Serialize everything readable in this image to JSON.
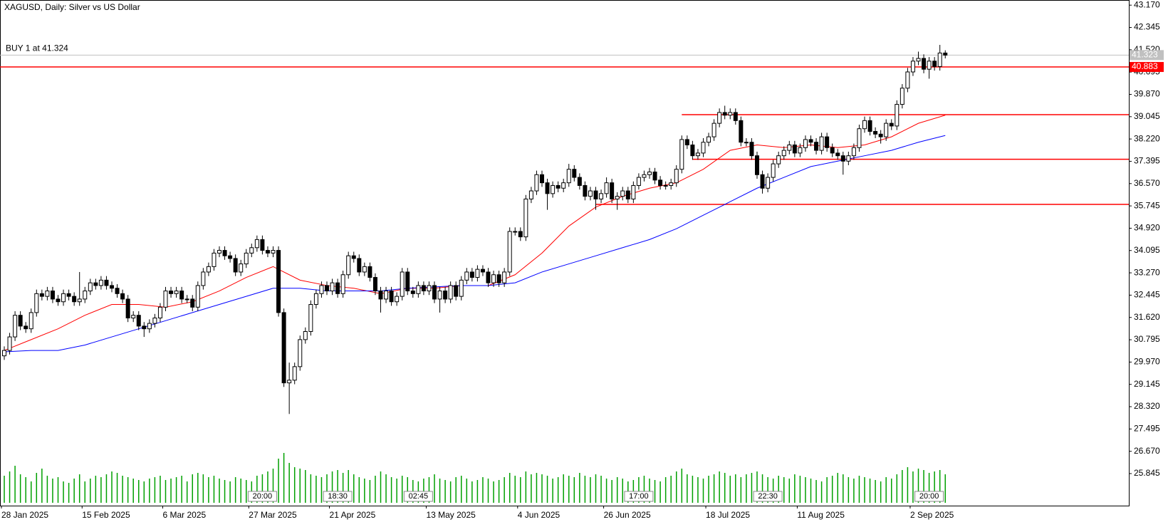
{
  "chart_data": {
    "type": "candlestick",
    "title": "XAGUSD, Daily:  Silver vs US Dollar",
    "annotation": "BUY 1 at 41.324",
    "ylim": [
      24.66,
      43.36
    ],
    "yticks": [
      {
        "value": 43.17,
        "label": "43.170"
      },
      42.345,
      {
        "value": 41.52,
        "label": "41.520"
      },
      40.695,
      {
        "value": 39.87,
        "label": "39.870"
      },
      39.045,
      {
        "value": 38.22,
        "label": "38.220"
      },
      37.395,
      {
        "value": 36.57,
        "label": "36.570"
      },
      35.745,
      {
        "value": 34.92,
        "label": "34.920"
      },
      34.095,
      {
        "value": 33.27,
        "label": "33.270"
      },
      32.445,
      {
        "value": 31.62,
        "label": "31.620"
      },
      30.795,
      {
        "value": 29.97,
        "label": "29.970"
      },
      29.145,
      {
        "value": 28.32,
        "label": "28.320"
      },
      27.495,
      {
        "value": 26.67,
        "label": "26.670"
      },
      25.845
    ],
    "xticks": [
      {
        "value": 0,
        "label": "28 Jan 2025"
      },
      {
        "value": 15,
        "label": "15 Feb 2025"
      },
      {
        "value": 30,
        "label": "6 Mar 2025"
      },
      {
        "value": 46,
        "label": "27 Mar 2025"
      },
      {
        "value": 61,
        "label": "21 Apr 2025"
      },
      {
        "value": 79,
        "label": "13 May 2025"
      },
      {
        "value": 96,
        "label": "4 Jun 2025"
      },
      {
        "value": 112,
        "label": "26 Jun 2025"
      },
      {
        "value": 131,
        "label": "18 Jul 2025"
      },
      {
        "value": 148,
        "label": "11 Aug 2025"
      },
      {
        "value": 169,
        "label": "2 Sep 2025"
      }
    ],
    "bid": 41.323,
    "bid_color": "#c0c0c0",
    "levels": [
      {
        "value": 40.883,
        "color": "#ff0000"
      },
      {
        "value": 39.12,
        "x0": 126,
        "color": "#ff0000"
      },
      {
        "value": 37.47,
        "x0": 128,
        "color": "#ff0000"
      },
      {
        "value": 35.8,
        "x0": 110,
        "color": "#ff0000"
      }
    ],
    "moving_averages": [
      {
        "color": "#ff0000",
        "x": [
          0,
          5,
          10,
          15,
          20,
          25,
          30,
          35,
          40,
          45,
          50,
          55,
          60,
          65,
          70,
          75,
          80,
          85,
          90,
          95,
          100,
          105,
          110,
          115,
          120,
          125,
          130,
          135,
          140,
          145,
          150,
          155,
          160,
          165,
          170,
          175
        ],
        "values": [
          30.4,
          30.8,
          31.2,
          31.7,
          32.1,
          32.1,
          32.0,
          32.2,
          32.6,
          33.1,
          33.5,
          33.0,
          32.8,
          32.7,
          32.5,
          32.7,
          32.7,
          32.8,
          32.8,
          33.2,
          34.0,
          35.0,
          35.7,
          36.1,
          36.4,
          36.6,
          37.1,
          37.8,
          38.0,
          37.9,
          38.0,
          37.9,
          38.0,
          38.3,
          38.8,
          39.1
        ]
      },
      {
        "color": "#0000ff",
        "x": [
          0,
          5,
          10,
          15,
          20,
          25,
          30,
          35,
          40,
          45,
          50,
          55,
          60,
          65,
          70,
          75,
          80,
          85,
          90,
          95,
          100,
          105,
          110,
          115,
          120,
          125,
          130,
          135,
          140,
          145,
          150,
          155,
          160,
          165,
          170,
          175
        ],
        "values": [
          30.35,
          30.4,
          30.4,
          30.6,
          30.9,
          31.2,
          31.5,
          31.8,
          32.1,
          32.4,
          32.7,
          32.7,
          32.6,
          32.6,
          32.6,
          32.7,
          32.75,
          32.8,
          32.8,
          32.9,
          33.3,
          33.6,
          33.9,
          34.2,
          34.5,
          34.9,
          35.4,
          35.9,
          36.4,
          36.8,
          37.2,
          37.4,
          37.6,
          37.8,
          38.1,
          38.35
        ]
      }
    ],
    "volume_color": "#00a000",
    "volume": [
      38,
      44,
      52,
      40,
      36,
      30,
      42,
      48,
      38,
      34,
      36,
      30,
      28,
      34,
      40,
      30,
      34,
      38,
      36,
      40,
      44,
      42,
      38,
      36,
      34,
      32,
      30,
      34,
      36,
      38,
      32,
      34,
      36,
      38,
      30,
      40,
      42,
      40,
      36,
      38,
      34,
      32,
      30,
      36,
      34,
      32,
      30,
      38,
      40,
      44,
      48,
      62,
      70,
      56,
      50,
      48,
      46,
      40,
      38,
      36,
      40,
      44,
      46,
      42,
      46,
      40,
      36,
      34,
      32,
      38,
      44,
      40,
      36,
      34,
      38,
      36,
      32,
      30,
      34,
      36,
      40,
      34,
      32,
      30,
      36,
      38,
      34,
      30,
      32,
      36,
      34,
      30,
      32,
      36,
      42,
      38,
      36,
      44,
      40,
      42,
      40,
      38,
      34,
      36,
      40,
      38,
      36,
      42,
      38,
      36,
      40,
      38,
      34,
      32,
      36,
      34,
      30,
      32,
      36,
      38,
      34,
      32,
      30,
      36,
      38,
      44,
      48,
      40,
      38,
      36,
      34,
      38,
      40,
      44,
      42,
      38,
      40,
      36,
      40,
      42,
      44,
      40,
      36,
      34,
      38,
      36,
      34,
      40,
      38,
      36,
      34,
      32,
      30,
      36,
      38,
      42,
      40,
      36,
      34,
      38,
      36,
      34,
      32,
      30,
      36,
      34,
      40,
      46,
      50,
      44,
      48,
      46,
      42,
      44,
      46,
      40
    ],
    "trade_labels": [
      "20:00",
      "18:30",
      "02:45",
      "17:00",
      "22:30",
      "20:00"
    ],
    "candles": [
      [
        30.2,
        30.55,
        30.05,
        30.4
      ],
      [
        30.4,
        31.05,
        30.25,
        30.9
      ],
      [
        30.9,
        31.85,
        30.75,
        31.7
      ],
      [
        31.7,
        31.85,
        31.15,
        31.3
      ],
      [
        31.3,
        31.45,
        31.05,
        31.2
      ],
      [
        31.2,
        31.95,
        31.05,
        31.8
      ],
      [
        31.8,
        32.65,
        31.65,
        32.5
      ],
      [
        32.5,
        32.65,
        32.25,
        32.4
      ],
      [
        32.4,
        32.75,
        32.25,
        32.6
      ],
      [
        32.6,
        32.75,
        32.15,
        32.3
      ],
      [
        32.3,
        32.45,
        32.05,
        32.2
      ],
      [
        32.2,
        32.65,
        32.05,
        32.5
      ],
      [
        32.5,
        32.65,
        32.25,
        32.4
      ],
      [
        32.4,
        32.55,
        32.05,
        32.2
      ],
      [
        32.2,
        33.3,
        32.05,
        32.3
      ],
      [
        32.3,
        32.75,
        32.15,
        32.6
      ],
      [
        32.6,
        33.05,
        32.45,
        32.9
      ],
      [
        32.9,
        33.05,
        32.65,
        32.8
      ],
      [
        32.8,
        33.15,
        32.65,
        33.0
      ],
      [
        33.0,
        33.15,
        32.65,
        32.8
      ],
      [
        32.8,
        32.95,
        32.55,
        32.7
      ],
      [
        32.7,
        32.85,
        32.35,
        32.5
      ],
      [
        32.5,
        32.65,
        32.15,
        32.3
      ],
      [
        32.3,
        32.45,
        31.45,
        31.6
      ],
      [
        31.6,
        31.85,
        31.45,
        31.7
      ],
      [
        31.7,
        31.85,
        31.15,
        31.3
      ],
      [
        31.3,
        31.45,
        30.9,
        31.2
      ],
      [
        31.2,
        31.55,
        31.05,
        31.4
      ],
      [
        31.4,
        31.75,
        31.25,
        31.6
      ],
      [
        31.6,
        32.15,
        31.45,
        32.0
      ],
      [
        32.0,
        32.75,
        31.85,
        32.6
      ],
      [
        32.6,
        32.75,
        32.35,
        32.5
      ],
      [
        32.5,
        32.75,
        32.35,
        32.6
      ],
      [
        32.6,
        32.75,
        32.15,
        32.3
      ],
      [
        32.3,
        32.45,
        32.15,
        32.3
      ],
      [
        32.3,
        32.45,
        31.85,
        32.0
      ],
      [
        32.0,
        32.95,
        31.85,
        32.8
      ],
      [
        32.8,
        33.45,
        32.65,
        33.3
      ],
      [
        33.3,
        33.65,
        33.15,
        33.5
      ],
      [
        33.5,
        34.15,
        33.35,
        34.0
      ],
      [
        34.0,
        34.25,
        33.85,
        34.1
      ],
      [
        34.1,
        34.25,
        33.75,
        33.9
      ],
      [
        33.9,
        34.05,
        33.65,
        33.8
      ],
      [
        33.8,
        33.95,
        33.15,
        33.3
      ],
      [
        33.3,
        33.75,
        33.15,
        33.6
      ],
      [
        33.6,
        34.15,
        33.45,
        34.0
      ],
      [
        34.0,
        34.35,
        33.85,
        34.2
      ],
      [
        34.2,
        34.65,
        34.05,
        34.5
      ],
      [
        34.5,
        34.65,
        33.95,
        34.1
      ],
      [
        34.1,
        34.25,
        33.85,
        34.0
      ],
      [
        34.0,
        34.25,
        33.85,
        34.1
      ],
      [
        34.1,
        34.25,
        31.65,
        31.8
      ],
      [
        31.8,
        31.95,
        29.05,
        29.2
      ],
      [
        29.2,
        29.95,
        28.05,
        29.3
      ],
      [
        29.3,
        29.95,
        29.15,
        29.8
      ],
      [
        29.8,
        30.95,
        29.65,
        30.8
      ],
      [
        30.8,
        31.25,
        30.65,
        31.1
      ],
      [
        31.1,
        32.25,
        30.95,
        32.1
      ],
      [
        32.1,
        32.65,
        31.95,
        32.5
      ],
      [
        32.5,
        32.95,
        32.35,
        32.8
      ],
      [
        32.8,
        32.95,
        32.45,
        32.6
      ],
      [
        32.6,
        33.05,
        32.45,
        32.9
      ],
      [
        32.9,
        33.05,
        32.35,
        32.5
      ],
      [
        32.5,
        33.35,
        32.35,
        33.2
      ],
      [
        33.2,
        34.05,
        33.05,
        33.9
      ],
      [
        33.9,
        34.05,
        33.65,
        33.8
      ],
      [
        33.8,
        33.95,
        33.15,
        33.3
      ],
      [
        33.3,
        33.65,
        33.15,
        33.5
      ],
      [
        33.5,
        33.65,
        32.95,
        33.1
      ],
      [
        33.1,
        33.25,
        32.45,
        32.6
      ],
      [
        32.6,
        32.75,
        31.8,
        32.3
      ],
      [
        32.3,
        32.75,
        32.15,
        32.6
      ],
      [
        32.6,
        32.75,
        32.05,
        32.2
      ],
      [
        32.2,
        32.55,
        32.05,
        32.4
      ],
      [
        32.4,
        33.45,
        32.25,
        33.3
      ],
      [
        33.3,
        33.45,
        32.45,
        32.6
      ],
      [
        32.6,
        32.75,
        32.35,
        32.5
      ],
      [
        32.5,
        32.95,
        32.35,
        32.8
      ],
      [
        32.8,
        32.95,
        32.45,
        32.6
      ],
      [
        32.6,
        32.95,
        32.45,
        32.8
      ],
      [
        32.8,
        32.95,
        32.15,
        32.3
      ],
      [
        32.3,
        32.75,
        31.8,
        32.6
      ],
      [
        32.6,
        32.75,
        32.15,
        32.3
      ],
      [
        32.3,
        32.95,
        32.15,
        32.8
      ],
      [
        32.8,
        32.95,
        32.25,
        32.4
      ],
      [
        32.4,
        33.15,
        32.25,
        33.0
      ],
      [
        33.0,
        33.45,
        32.85,
        33.3
      ],
      [
        33.3,
        33.45,
        32.95,
        33.1
      ],
      [
        33.1,
        33.55,
        32.95,
        33.4
      ],
      [
        33.4,
        33.55,
        33.15,
        33.3
      ],
      [
        33.3,
        33.45,
        32.75,
        32.9
      ],
      [
        32.9,
        33.35,
        32.75,
        33.2
      ],
      [
        33.2,
        33.35,
        32.75,
        32.9
      ],
      [
        32.9,
        33.45,
        32.75,
        33.3
      ],
      [
        33.3,
        34.95,
        33.15,
        34.8
      ],
      [
        34.8,
        34.95,
        34.65,
        34.8
      ],
      [
        34.8,
        34.95,
        34.45,
        34.6
      ],
      [
        34.6,
        36.15,
        34.45,
        36.0
      ],
      [
        36.0,
        36.45,
        35.85,
        36.3
      ],
      [
        36.3,
        37.05,
        36.15,
        36.9
      ],
      [
        36.9,
        37.05,
        36.45,
        36.6
      ],
      [
        36.6,
        36.75,
        35.6,
        36.2
      ],
      [
        36.2,
        36.65,
        36.05,
        36.5
      ],
      [
        36.5,
        36.65,
        36.25,
        36.4
      ],
      [
        36.4,
        36.75,
        36.25,
        36.6
      ],
      [
        36.6,
        37.3,
        36.45,
        37.1
      ],
      [
        37.1,
        37.25,
        36.65,
        36.8
      ],
      [
        36.8,
        36.95,
        36.35,
        36.5
      ],
      [
        36.5,
        36.65,
        35.95,
        36.1
      ],
      [
        36.1,
        36.45,
        35.95,
        36.3
      ],
      [
        36.3,
        36.45,
        35.6,
        36.0
      ],
      [
        36.0,
        36.35,
        35.85,
        36.2
      ],
      [
        36.2,
        36.8,
        36.05,
        36.6
      ],
      [
        36.6,
        36.75,
        35.85,
        36.0
      ],
      [
        36.0,
        36.25,
        35.6,
        36.1
      ],
      [
        36.1,
        36.45,
        35.95,
        36.3
      ],
      [
        36.3,
        36.45,
        35.85,
        36.0
      ],
      [
        36.0,
        36.65,
        35.85,
        36.5
      ],
      [
        36.5,
        36.95,
        36.35,
        36.8
      ],
      [
        36.8,
        37.05,
        36.65,
        36.9
      ],
      [
        36.9,
        37.15,
        36.75,
        37.0
      ],
      [
        37.0,
        37.15,
        36.55,
        36.7
      ],
      [
        36.7,
        36.85,
        36.35,
        36.5
      ],
      [
        36.5,
        36.65,
        36.35,
        36.5
      ],
      [
        36.5,
        36.75,
        36.35,
        36.6
      ],
      [
        36.6,
        37.25,
        36.45,
        37.1
      ],
      [
        37.1,
        38.35,
        36.95,
        38.2
      ],
      [
        38.2,
        38.35,
        37.85,
        38.0
      ],
      [
        38.0,
        38.15,
        37.45,
        37.6
      ],
      [
        37.6,
        37.85,
        37.45,
        37.7
      ],
      [
        37.7,
        38.25,
        37.55,
        38.1
      ],
      [
        38.1,
        38.45,
        37.95,
        38.3
      ],
      [
        38.3,
        38.95,
        38.15,
        38.8
      ],
      [
        38.8,
        39.35,
        38.65,
        39.2
      ],
      [
        39.2,
        39.45,
        38.95,
        39.1
      ],
      [
        39.1,
        39.35,
        38.95,
        39.2
      ],
      [
        39.2,
        39.35,
        38.75,
        38.9
      ],
      [
        38.9,
        39.05,
        37.95,
        38.1
      ],
      [
        38.1,
        38.25,
        37.95,
        38.1
      ],
      [
        38.1,
        38.25,
        37.45,
        37.6
      ],
      [
        37.6,
        37.75,
        36.75,
        36.9
      ],
      [
        36.9,
        37.05,
        36.2,
        36.4
      ],
      [
        36.4,
        36.95,
        36.25,
        36.8
      ],
      [
        36.8,
        37.45,
        36.65,
        37.3
      ],
      [
        37.3,
        37.75,
        37.15,
        37.6
      ],
      [
        37.6,
        37.95,
        37.45,
        37.8
      ],
      [
        37.8,
        38.15,
        37.65,
        38.0
      ],
      [
        38.0,
        38.15,
        37.55,
        37.7
      ],
      [
        37.7,
        38.05,
        37.55,
        37.9
      ],
      [
        37.9,
        38.35,
        37.75,
        38.2
      ],
      [
        38.2,
        38.35,
        37.95,
        38.1
      ],
      [
        38.1,
        38.25,
        37.65,
        37.8
      ],
      [
        37.8,
        38.45,
        37.65,
        38.3
      ],
      [
        38.3,
        38.45,
        37.75,
        37.9
      ],
      [
        37.9,
        38.05,
        37.55,
        37.7
      ],
      [
        37.7,
        37.85,
        37.45,
        37.6
      ],
      [
        37.6,
        37.75,
        36.9,
        37.4
      ],
      [
        37.4,
        37.75,
        37.25,
        37.6
      ],
      [
        37.6,
        38.05,
        37.45,
        37.9
      ],
      [
        37.9,
        38.75,
        37.75,
        38.6
      ],
      [
        38.6,
        39.05,
        38.45,
        38.9
      ],
      [
        38.9,
        39.05,
        38.35,
        38.5
      ],
      [
        38.5,
        38.65,
        38.25,
        38.4
      ],
      [
        38.4,
        38.55,
        38.05,
        38.3
      ],
      [
        38.3,
        38.95,
        38.15,
        38.8
      ],
      [
        38.8,
        38.95,
        38.55,
        38.7
      ],
      [
        38.7,
        39.65,
        38.55,
        39.5
      ],
      [
        39.5,
        40.25,
        39.35,
        40.1
      ],
      [
        40.1,
        40.85,
        39.95,
        40.7
      ],
      [
        40.7,
        41.25,
        40.55,
        41.1
      ],
      [
        41.1,
        41.45,
        40.95,
        41.2
      ],
      [
        41.2,
        41.35,
        40.65,
        40.8
      ],
      [
        40.8,
        41.25,
        40.45,
        41.1
      ],
      [
        41.1,
        41.25,
        40.75,
        40.9
      ],
      [
        40.9,
        41.7,
        40.75,
        41.4
      ],
      [
        41.4,
        41.5,
        41.2,
        41.32
      ]
    ]
  }
}
